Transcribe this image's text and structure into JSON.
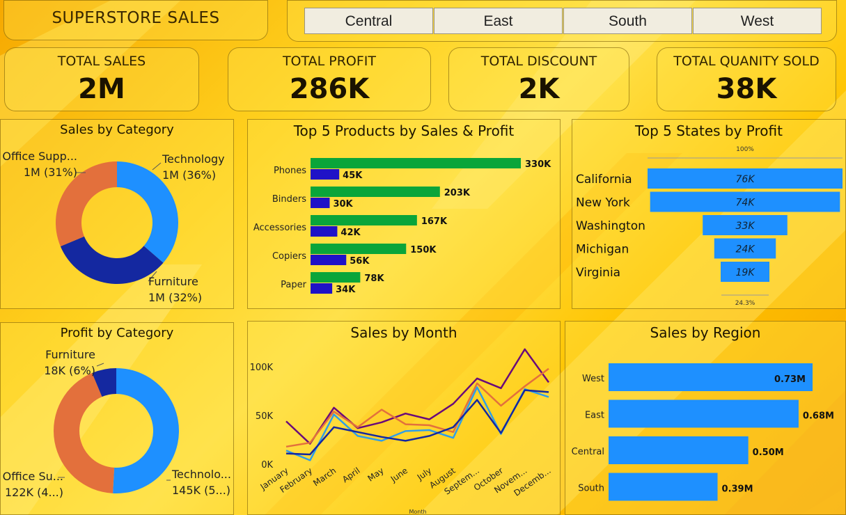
{
  "header": {
    "title": "SUPERSTORE SALES"
  },
  "slicer": {
    "options": [
      "Central",
      "East",
      "South",
      "West"
    ]
  },
  "kpis": [
    {
      "label": "TOTAL SALES",
      "value": "2M"
    },
    {
      "label": "TOTAL PROFIT",
      "value": "286K"
    },
    {
      "label": "TOTAL DISCOUNT",
      "value": "2K"
    },
    {
      "label": "TOTAL QUANITY SOLD",
      "value": "38K"
    }
  ],
  "colors": {
    "sales_green": "#0aa53a",
    "profit_blue": "#1f12c7",
    "bar_blue": "#1e90ff",
    "donut_blue": "#1e90ff",
    "donut_dark": "#1428a0",
    "donut_orange": "#e3703c"
  },
  "chart_data": [
    {
      "id": "sales_by_category",
      "type": "pie",
      "title": "Sales by Category",
      "slices": [
        {
          "name": "Technology",
          "value": 36,
          "label": "Technology",
          "sublabel": "1M (36%)"
        },
        {
          "name": "Furniture",
          "value": 32,
          "label": "Furniture",
          "sublabel": "1M (32%)"
        },
        {
          "name": "Office Supplies",
          "value": 31,
          "label": "Office Supp...",
          "sublabel": "1M (31%)"
        }
      ]
    },
    {
      "id": "top5_products",
      "type": "bar",
      "title": "Top 5 Products by Sales & Profit",
      "categories": [
        "Phones",
        "Binders",
        "Accessories",
        "Copiers",
        "Paper"
      ],
      "series": [
        {
          "values": [
            330,
            203,
            167,
            150,
            78
          ],
          "labels": [
            "330K",
            "203K",
            "167K",
            "150K",
            "78K"
          ]
        },
        {
          "values": [
            45,
            30,
            42,
            56,
            34
          ],
          "labels": [
            "45K",
            "30K",
            "42K",
            "56K",
            "34K"
          ]
        }
      ]
    },
    {
      "id": "top5_states",
      "type": "bar",
      "title": "Top 5 States by Profit",
      "categories": [
        "California",
        "New York",
        "Washington",
        "Michigan",
        "Virginia"
      ],
      "values": [
        76,
        74,
        33,
        24,
        19
      ],
      "labels": [
        "76K",
        "74K",
        "33K",
        "24K",
        "19K"
      ],
      "top_annotation": "100%",
      "bottom_annotation": "24.3%"
    },
    {
      "id": "profit_by_category",
      "type": "pie",
      "title": "Profit by Category",
      "slices": [
        {
          "name": "Technology",
          "value": 145,
          "label": "Technolo...",
          "sublabel": "145K (5...)"
        },
        {
          "name": "Office Supplies",
          "value": 122,
          "label": "Office Su...",
          "sublabel": "122K (4...)"
        },
        {
          "name": "Furniture",
          "value": 18,
          "label": "Furniture",
          "sublabel": "18K (6%)"
        }
      ]
    },
    {
      "id": "sales_by_month",
      "type": "line",
      "title": "Sales by Month",
      "xlabel": "Month",
      "categories": [
        "January",
        "February",
        "March",
        "April",
        "May",
        "June",
        "July",
        "August",
        "Septem...",
        "October",
        "Novem...",
        "Decemb..."
      ],
      "yticks": [
        {
          "v": 0,
          "label": "0K"
        },
        {
          "v": 50,
          "label": "50K"
        },
        {
          "v": 100,
          "label": "100K"
        }
      ],
      "ylim": [
        0,
        125
      ],
      "series": [
        {
          "color": "#6a0a7a",
          "values": [
            44,
            21,
            58,
            37,
            43,
            52,
            46,
            62,
            88,
            78,
            118,
            84
          ]
        },
        {
          "color": "#e3703c",
          "values": [
            18,
            22,
            54,
            38,
            56,
            41,
            40,
            33,
            83,
            60,
            80,
            98
          ]
        },
        {
          "color": "#2f9ee8",
          "values": [
            14,
            4,
            51,
            29,
            24,
            34,
            35,
            27,
            79,
            31,
            77,
            69
          ]
        },
        {
          "color": "#1428a0",
          "values": [
            11,
            10,
            38,
            33,
            28,
            24,
            29,
            38,
            66,
            32,
            76,
            74
          ]
        }
      ]
    },
    {
      "id": "sales_by_region",
      "type": "bar",
      "title": "Sales by Region",
      "categories": [
        "West",
        "East",
        "Central",
        "South"
      ],
      "values": [
        0.73,
        0.68,
        0.5,
        0.39
      ],
      "labels": [
        "0.73M",
        "0.68M",
        "0.50M",
        "0.39M"
      ]
    }
  ]
}
